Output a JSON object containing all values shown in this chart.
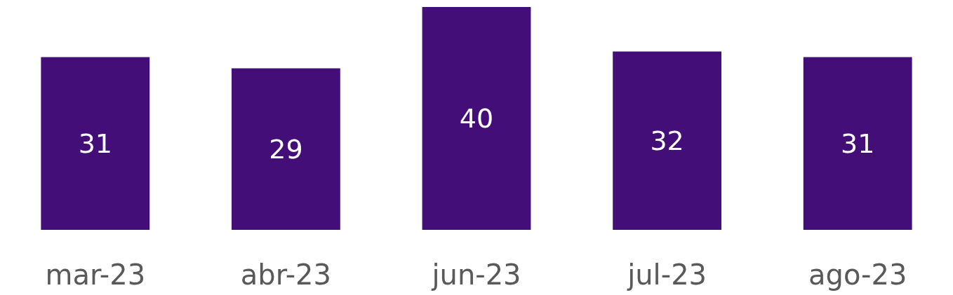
{
  "chart_data": {
    "type": "bar",
    "categories": [
      "mar-23",
      "abr-23",
      "jun-23",
      "jul-23",
      "ago-23"
    ],
    "values": [
      31,
      29,
      40,
      32,
      31
    ],
    "color": "#440e78",
    "data_labels": true
  }
}
